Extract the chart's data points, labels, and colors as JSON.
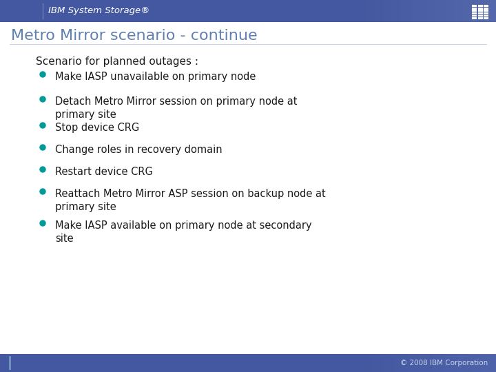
{
  "header_text": "IBM System Storage®",
  "title": "Metro Mirror scenario - continue",
  "subtitle": "Scenario for planned outages :",
  "bullets": [
    "Make IASP unavailable on primary node",
    "Detach Metro Mirror session on primary node at\nprimary site",
    "Stop device CRG",
    "Change roles in recovery domain",
    "Restart device CRG",
    "Reattach Metro Mirror ASP session on backup node at\nprimary site",
    "Make IASP available on primary node at secondary\nsite"
  ],
  "header_bg": "#4358a0",
  "header_text_color": "#ffffff",
  "title_color": "#6080b0",
  "subtitle_color": "#1a1a1a",
  "bullet_color": "#1a1a1a",
  "bullet_dot_color": "#009999",
  "footer_bg": "#4358a0",
  "footer_text": "© 2008 IBM Corporation",
  "footer_text_color": "#c8d4f0",
  "bg_color": "#ffffff",
  "left_footer_accent": "#6080b8"
}
